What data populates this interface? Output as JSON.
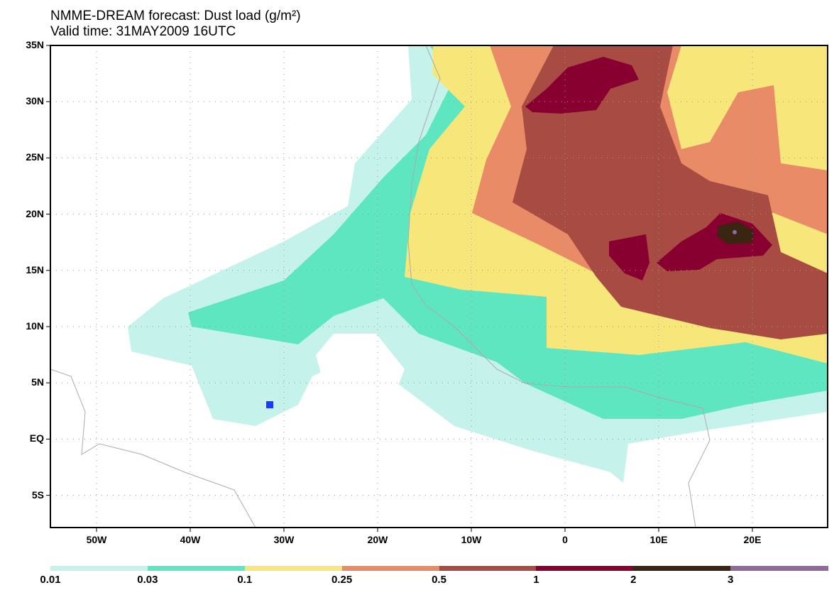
{
  "title": "NMME-DREAM forecast: Dust load (g/m²)",
  "subtitle": "Valid time: 31MAY2009 16UTC",
  "lon_labels": [
    "50W",
    "40W",
    "30W",
    "20W",
    "10W",
    "0",
    "10E",
    "20E"
  ],
  "lat_labels": [
    "35N",
    "30N",
    "25N",
    "20N",
    "15N",
    "10N",
    "5N",
    "EQ",
    "5S"
  ],
  "colorbar": {
    "labels": [
      "0.01",
      "0.03",
      "0.1",
      "0.25",
      "0.5",
      "1",
      "2",
      "3"
    ],
    "colors": [
      "#c6f2ec",
      "#5ee6c1",
      "#f7e67a",
      "#e98b67",
      "#a84b42",
      "#88002f",
      "#3a2412",
      "#8e6b9c"
    ]
  },
  "marker_color": "#1a3cff"
}
